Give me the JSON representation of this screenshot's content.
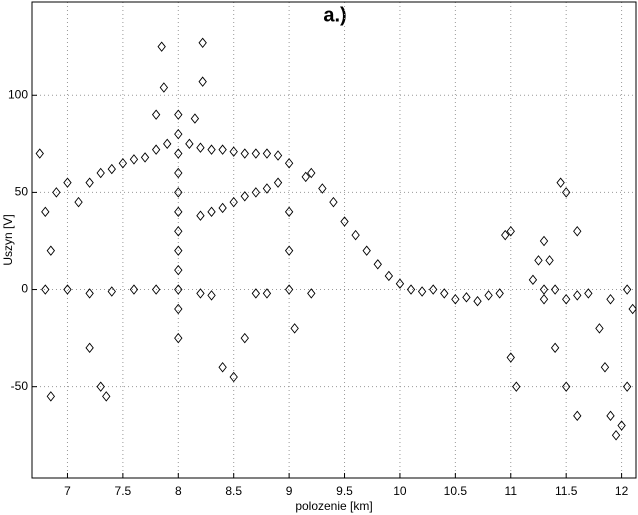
{
  "chart_data": {
    "type": "scatter",
    "title": "a.)",
    "x_label": "polozenie [km]",
    "y_label": "Uszyn [V]",
    "xlim": [
      6.68,
      12.13
    ],
    "ylim": [
      -97,
      148
    ],
    "xticks": [
      7,
      7.5,
      8,
      8.5,
      9,
      9.5,
      10,
      10.5,
      11,
      11.5,
      12
    ],
    "yticks": [
      -50,
      0,
      50,
      100
    ],
    "grid": true,
    "color": "#000000",
    "x": [
      6.75,
      6.8,
      6.85,
      6.9,
      7.0,
      7.1,
      7.2,
      7.3,
      7.4,
      7.5,
      7.6,
      7.7,
      7.8,
      7.9,
      8.0,
      8.0,
      8.0,
      8.0,
      8.0,
      8.0,
      8.0,
      8.0,
      8.0,
      8.0,
      8.0,
      8.0,
      8.1,
      8.2,
      8.3,
      8.4,
      8.5,
      8.6,
      8.7,
      8.8,
      8.9,
      8.2,
      8.3,
      8.4,
      8.5,
      8.6,
      8.7,
      8.8,
      8.9,
      6.8,
      7.0,
      7.2,
      7.4,
      7.6,
      7.8,
      8.2,
      8.3,
      6.85,
      7.3,
      7.35,
      7.2,
      9.0,
      9.0,
      9.0,
      9.0,
      9.05,
      8.8,
      8.7,
      9.2,
      9.15,
      9.2,
      9.3,
      9.4,
      9.5,
      9.6,
      9.7,
      9.8,
      9.9,
      10.0,
      10.1,
      10.2,
      10.3,
      10.4,
      10.5,
      10.6,
      10.7,
      10.8,
      10.9,
      10.95,
      11.0,
      11.0,
      11.05,
      11.2,
      11.25,
      11.3,
      11.35,
      11.3,
      11.3,
      11.4,
      11.5,
      11.6,
      11.7,
      11.5,
      11.45,
      11.6,
      11.4,
      11.5,
      11.6,
      11.8,
      11.85,
      11.9,
      11.95,
      12.0,
      12.05,
      12.1,
      12.05,
      11.9,
      8.4,
      8.5,
      8.6,
      7.85,
      8.22,
      8.22,
      7.87,
      7.8,
      8.15
    ],
    "y": [
      70,
      40,
      20,
      50,
      55,
      45,
      55,
      60,
      62,
      65,
      67,
      68,
      72,
      75,
      -25,
      -10,
      0,
      10,
      20,
      30,
      40,
      50,
      60,
      70,
      80,
      90,
      75,
      73,
      72,
      72,
      71,
      70,
      70,
      70,
      69,
      38,
      40,
      42,
      45,
      48,
      50,
      52,
      55,
      0,
      0,
      -2,
      -1,
      0,
      0,
      -2,
      -3,
      -55,
      -50,
      -55,
      -30,
      65,
      40,
      20,
      0,
      -20,
      -2,
      -2,
      -2,
      58,
      60,
      52,
      45,
      35,
      28,
      20,
      13,
      7,
      3,
      0,
      -1,
      0,
      -2,
      -5,
      -4,
      -6,
      -3,
      -2,
      28,
      30,
      -35,
      -50,
      5,
      15,
      25,
      15,
      -5,
      0,
      0,
      -5,
      -3,
      -2,
      50,
      55,
      30,
      -30,
      -50,
      -65,
      -20,
      -40,
      -65,
      -75,
      -70,
      -50,
      -10,
      0,
      -5,
      -40,
      -45,
      -25,
      125,
      127,
      107,
      104,
      90,
      88
    ]
  }
}
